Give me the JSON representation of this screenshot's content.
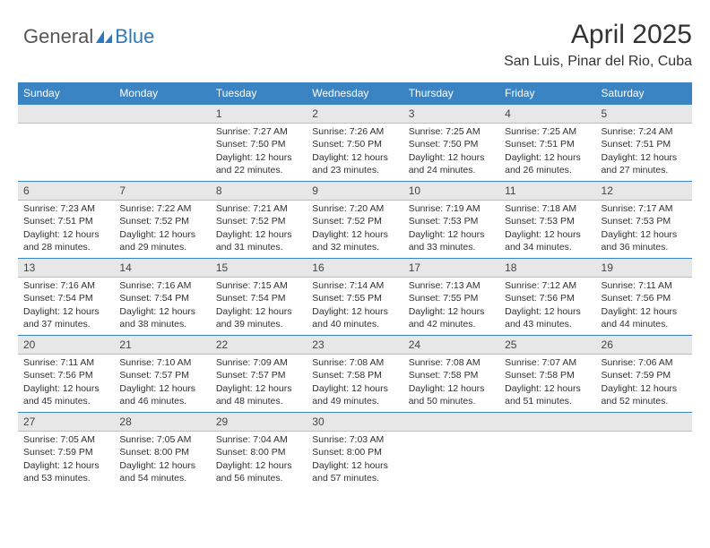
{
  "logo": {
    "text_general": "General",
    "text_blue": "Blue",
    "blue_color": "#2f78bd",
    "gray_color": "#555555"
  },
  "header": {
    "month_title": "April 2025",
    "location": "San Luis, Pinar del Rio, Cuba"
  },
  "colors": {
    "header_row_bg": "#3a84c4",
    "header_row_text": "#ffffff",
    "daynum_bg": "#e7e7e7",
    "daynum_border_top": "#3a84c4",
    "daynum_border_bottom": "#bdbdbd",
    "body_text": "#303030"
  },
  "weekdays": [
    "Sunday",
    "Monday",
    "Tuesday",
    "Wednesday",
    "Thursday",
    "Friday",
    "Saturday"
  ],
  "weeks": [
    [
      {
        "day": "",
        "lines": []
      },
      {
        "day": "",
        "lines": []
      },
      {
        "day": "1",
        "lines": [
          "Sunrise: 7:27 AM",
          "Sunset: 7:50 PM",
          "Daylight: 12 hours and 22 minutes."
        ]
      },
      {
        "day": "2",
        "lines": [
          "Sunrise: 7:26 AM",
          "Sunset: 7:50 PM",
          "Daylight: 12 hours and 23 minutes."
        ]
      },
      {
        "day": "3",
        "lines": [
          "Sunrise: 7:25 AM",
          "Sunset: 7:50 PM",
          "Daylight: 12 hours and 24 minutes."
        ]
      },
      {
        "day": "4",
        "lines": [
          "Sunrise: 7:25 AM",
          "Sunset: 7:51 PM",
          "Daylight: 12 hours and 26 minutes."
        ]
      },
      {
        "day": "5",
        "lines": [
          "Sunrise: 7:24 AM",
          "Sunset: 7:51 PM",
          "Daylight: 12 hours and 27 minutes."
        ]
      }
    ],
    [
      {
        "day": "6",
        "lines": [
          "Sunrise: 7:23 AM",
          "Sunset: 7:51 PM",
          "Daylight: 12 hours and 28 minutes."
        ]
      },
      {
        "day": "7",
        "lines": [
          "Sunrise: 7:22 AM",
          "Sunset: 7:52 PM",
          "Daylight: 12 hours and 29 minutes."
        ]
      },
      {
        "day": "8",
        "lines": [
          "Sunrise: 7:21 AM",
          "Sunset: 7:52 PM",
          "Daylight: 12 hours and 31 minutes."
        ]
      },
      {
        "day": "9",
        "lines": [
          "Sunrise: 7:20 AM",
          "Sunset: 7:52 PM",
          "Daylight: 12 hours and 32 minutes."
        ]
      },
      {
        "day": "10",
        "lines": [
          "Sunrise: 7:19 AM",
          "Sunset: 7:53 PM",
          "Daylight: 12 hours and 33 minutes."
        ]
      },
      {
        "day": "11",
        "lines": [
          "Sunrise: 7:18 AM",
          "Sunset: 7:53 PM",
          "Daylight: 12 hours and 34 minutes."
        ]
      },
      {
        "day": "12",
        "lines": [
          "Sunrise: 7:17 AM",
          "Sunset: 7:53 PM",
          "Daylight: 12 hours and 36 minutes."
        ]
      }
    ],
    [
      {
        "day": "13",
        "lines": [
          "Sunrise: 7:16 AM",
          "Sunset: 7:54 PM",
          "Daylight: 12 hours and 37 minutes."
        ]
      },
      {
        "day": "14",
        "lines": [
          "Sunrise: 7:16 AM",
          "Sunset: 7:54 PM",
          "Daylight: 12 hours and 38 minutes."
        ]
      },
      {
        "day": "15",
        "lines": [
          "Sunrise: 7:15 AM",
          "Sunset: 7:54 PM",
          "Daylight: 12 hours and 39 minutes."
        ]
      },
      {
        "day": "16",
        "lines": [
          "Sunrise: 7:14 AM",
          "Sunset: 7:55 PM",
          "Daylight: 12 hours and 40 minutes."
        ]
      },
      {
        "day": "17",
        "lines": [
          "Sunrise: 7:13 AM",
          "Sunset: 7:55 PM",
          "Daylight: 12 hours and 42 minutes."
        ]
      },
      {
        "day": "18",
        "lines": [
          "Sunrise: 7:12 AM",
          "Sunset: 7:56 PM",
          "Daylight: 12 hours and 43 minutes."
        ]
      },
      {
        "day": "19",
        "lines": [
          "Sunrise: 7:11 AM",
          "Sunset: 7:56 PM",
          "Daylight: 12 hours and 44 minutes."
        ]
      }
    ],
    [
      {
        "day": "20",
        "lines": [
          "Sunrise: 7:11 AM",
          "Sunset: 7:56 PM",
          "Daylight: 12 hours and 45 minutes."
        ]
      },
      {
        "day": "21",
        "lines": [
          "Sunrise: 7:10 AM",
          "Sunset: 7:57 PM",
          "Daylight: 12 hours and 46 minutes."
        ]
      },
      {
        "day": "22",
        "lines": [
          "Sunrise: 7:09 AM",
          "Sunset: 7:57 PM",
          "Daylight: 12 hours and 48 minutes."
        ]
      },
      {
        "day": "23",
        "lines": [
          "Sunrise: 7:08 AM",
          "Sunset: 7:58 PM",
          "Daylight: 12 hours and 49 minutes."
        ]
      },
      {
        "day": "24",
        "lines": [
          "Sunrise: 7:08 AM",
          "Sunset: 7:58 PM",
          "Daylight: 12 hours and 50 minutes."
        ]
      },
      {
        "day": "25",
        "lines": [
          "Sunrise: 7:07 AM",
          "Sunset: 7:58 PM",
          "Daylight: 12 hours and 51 minutes."
        ]
      },
      {
        "day": "26",
        "lines": [
          "Sunrise: 7:06 AM",
          "Sunset: 7:59 PM",
          "Daylight: 12 hours and 52 minutes."
        ]
      }
    ],
    [
      {
        "day": "27",
        "lines": [
          "Sunrise: 7:05 AM",
          "Sunset: 7:59 PM",
          "Daylight: 12 hours and 53 minutes."
        ]
      },
      {
        "day": "28",
        "lines": [
          "Sunrise: 7:05 AM",
          "Sunset: 8:00 PM",
          "Daylight: 12 hours and 54 minutes."
        ]
      },
      {
        "day": "29",
        "lines": [
          "Sunrise: 7:04 AM",
          "Sunset: 8:00 PM",
          "Daylight: 12 hours and 56 minutes."
        ]
      },
      {
        "day": "30",
        "lines": [
          "Sunrise: 7:03 AM",
          "Sunset: 8:00 PM",
          "Daylight: 12 hours and 57 minutes."
        ]
      },
      {
        "day": "",
        "lines": []
      },
      {
        "day": "",
        "lines": []
      },
      {
        "day": "",
        "lines": []
      }
    ]
  ]
}
